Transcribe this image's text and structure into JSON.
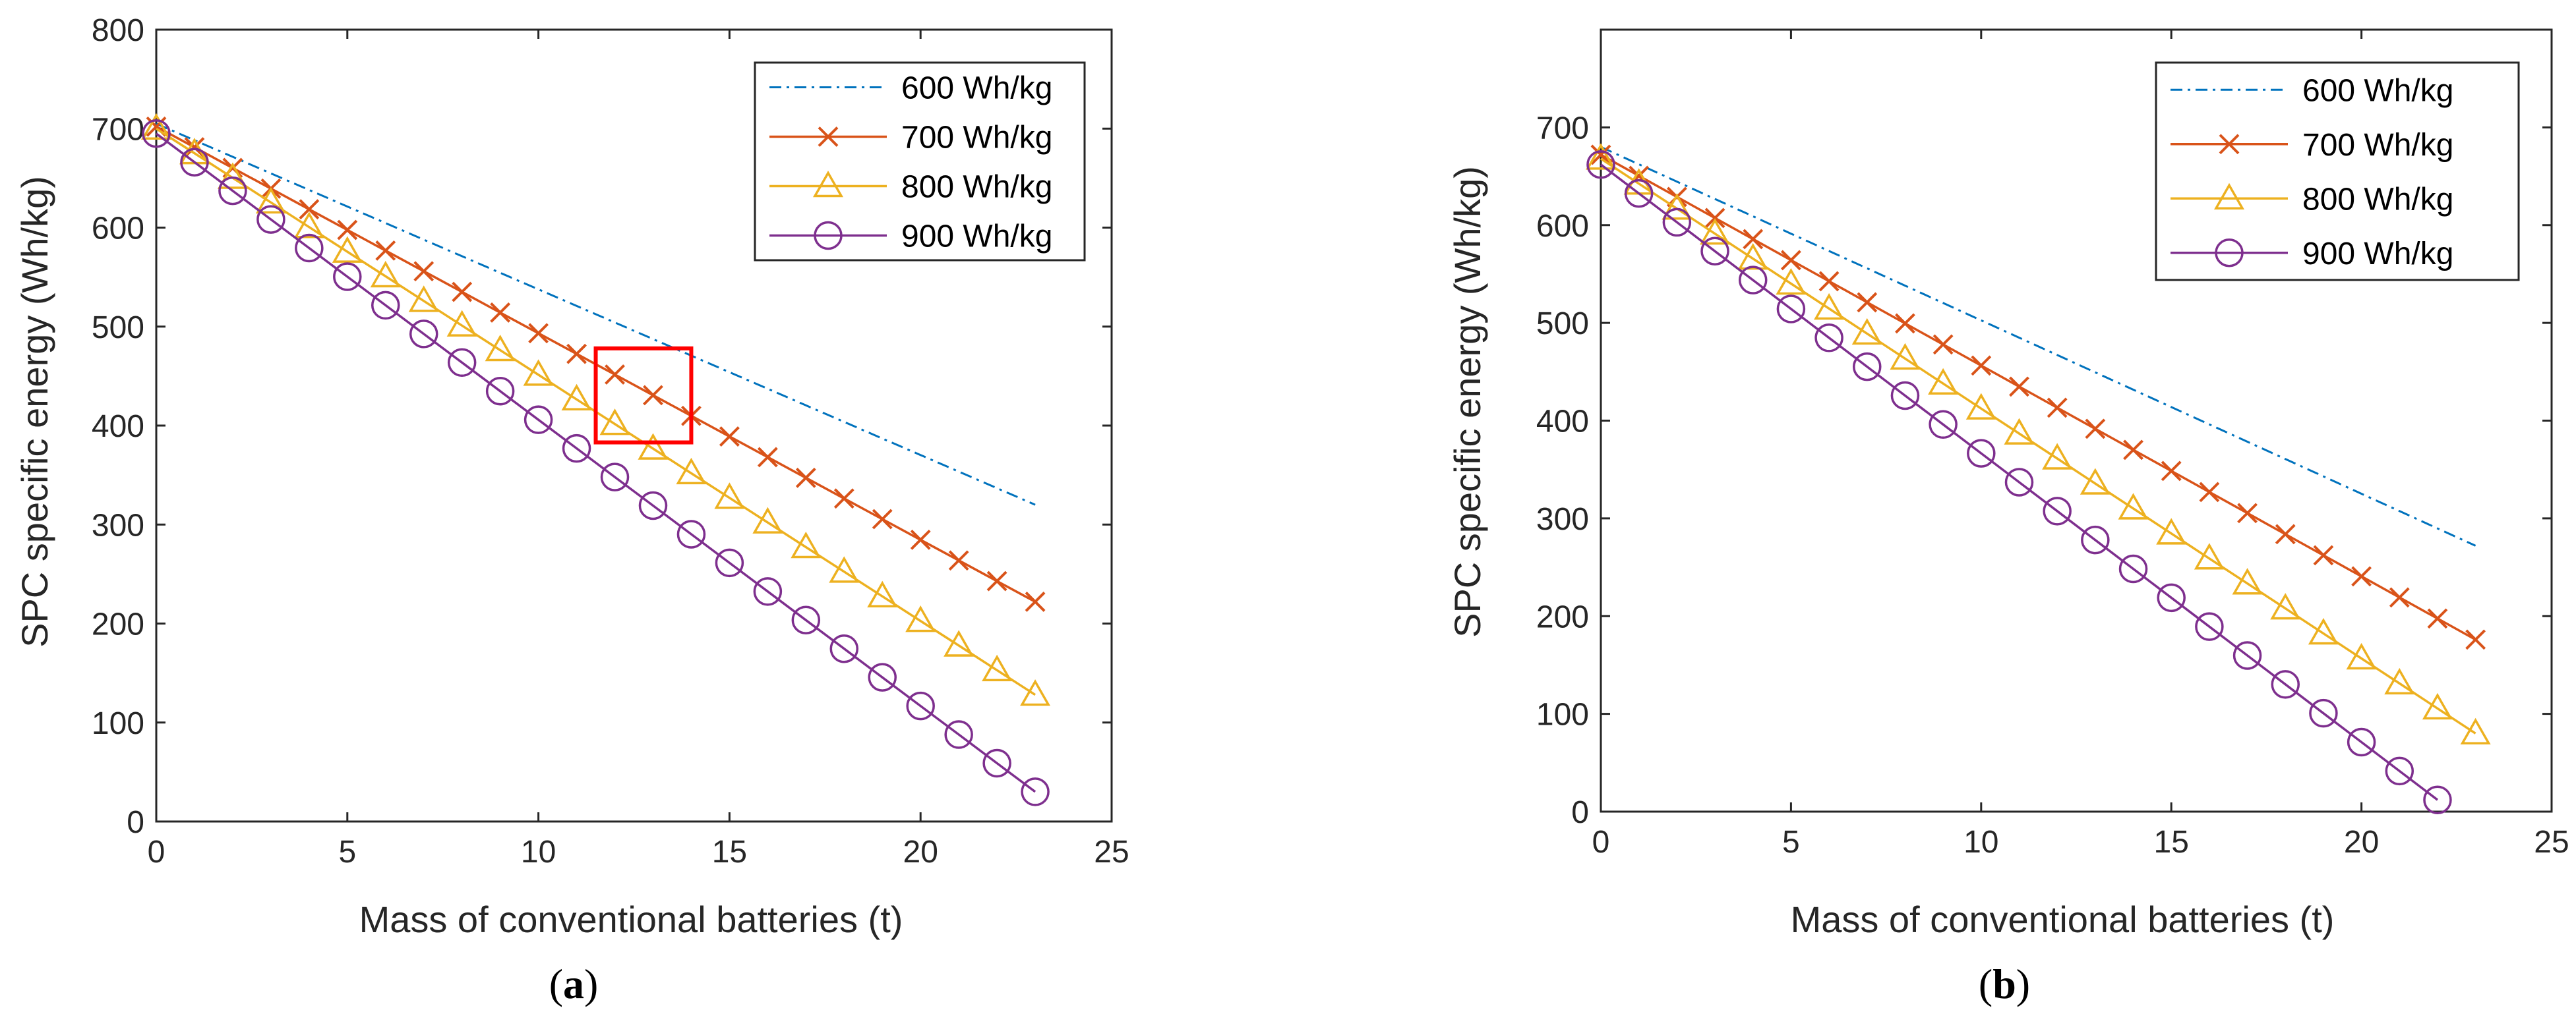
{
  "chart_data": [
    {
      "type": "line",
      "panel_label": "a",
      "caption_open": "(",
      "caption_close": ")",
      "xlabel": "Mass of conventional batteries (t)",
      "ylabel": "SPC specific energy (Wh/kg)",
      "xlim": [
        0,
        25
      ],
      "ylim": [
        0,
        800
      ],
      "xticks": [
        0,
        5,
        10,
        15,
        20,
        25
      ],
      "yticks": [
        0,
        100,
        200,
        300,
        400,
        500,
        600,
        700,
        800
      ],
      "legend_position": "top-right",
      "highlight_box": {
        "x_range": [
          11.5,
          14
        ],
        "y_range": [
          383,
          478
        ],
        "color": "#ff0000"
      },
      "series": [
        {
          "name": "600 Wh/kg",
          "marker": "none",
          "line": "dashdot",
          "color": "#0072bd",
          "x_start": 0,
          "x_end": 23,
          "y_start": 705,
          "y_end": 320
        },
        {
          "name": "700 Wh/kg",
          "marker": "x",
          "line": "solid",
          "color": "#d95319",
          "x_start": 0,
          "x_end": 23,
          "y_start": 702,
          "y_end": 222
        },
        {
          "name": "800 Wh/kg",
          "marker": "triangle",
          "line": "solid",
          "color": "#edb120",
          "x_start": 0,
          "x_end": 23,
          "y_start": 700,
          "y_end": 128
        },
        {
          "name": "900 Wh/kg",
          "marker": "circle",
          "line": "solid",
          "color": "#7e2f8e",
          "x_start": 0,
          "x_end": 23,
          "y_start": 695,
          "y_end": 30
        }
      ]
    },
    {
      "type": "line",
      "panel_label": "b",
      "caption_open": "(",
      "caption_close": ")",
      "xlabel": "Mass of conventional batteries (t)",
      "ylabel": "SPC specific energy (Wh/kg)",
      "xlim": [
        0,
        25
      ],
      "ylim": [
        0,
        800
      ],
      "xticks": [
        0,
        5,
        10,
        15,
        20,
        25
      ],
      "yticks": [
        0,
        100,
        200,
        300,
        400,
        500,
        600,
        700
      ],
      "legend_position": "top-right",
      "series": [
        {
          "name": "600 Wh/kg",
          "marker": "none",
          "line": "dashdot",
          "color": "#0072bd",
          "x_start": 0,
          "x_end": 23,
          "y_start": 680,
          "y_end": 272
        },
        {
          "name": "700 Wh/kg",
          "marker": "x",
          "line": "solid",
          "color": "#d95319",
          "x_start": 0,
          "x_end": 23,
          "y_start": 672,
          "y_end": 176
        },
        {
          "name": "800 Wh/kg",
          "marker": "triangle",
          "line": "solid",
          "color": "#edb120",
          "x_start": 0,
          "x_end": 23,
          "y_start": 668,
          "y_end": 80
        },
        {
          "name": "900 Wh/kg",
          "marker": "circle",
          "line": "solid",
          "color": "#7e2f8e",
          "x_start": 0,
          "x_end": 22,
          "y_start": 662,
          "y_end": 12
        }
      ]
    }
  ]
}
